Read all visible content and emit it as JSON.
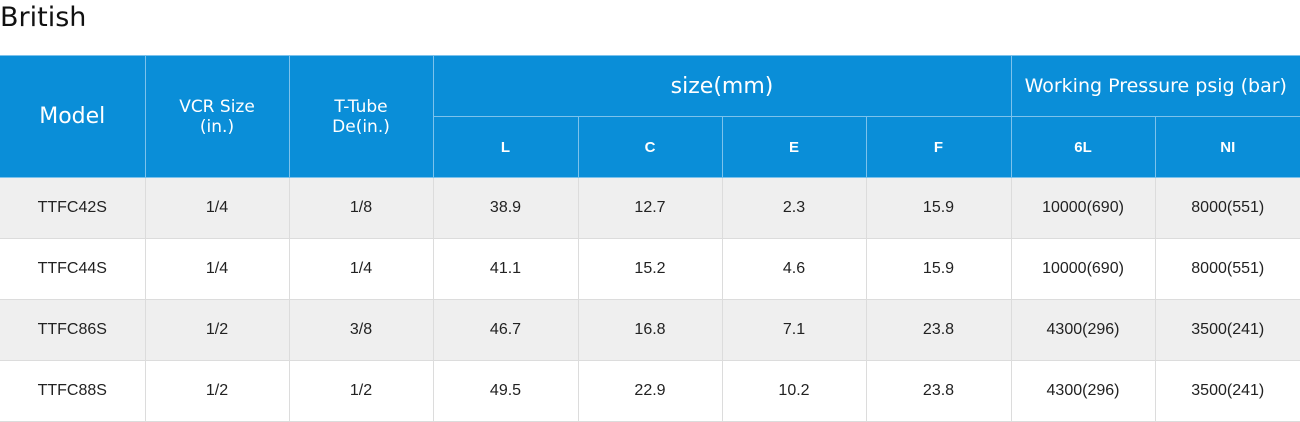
{
  "title": "British",
  "table": {
    "header": {
      "model": "Model",
      "vcr_size": [
        "VCR Size",
        "(in.)"
      ],
      "t_tube": [
        "T-Tube",
        "De(in.)"
      ],
      "size_group": "size(mm)",
      "pressure_group": "Working Pressure psig (bar)",
      "size_columns": [
        "L",
        "C",
        "E",
        "F"
      ],
      "pressure_columns": [
        "6L",
        "NI"
      ]
    },
    "rows": [
      [
        "TTFC42S",
        "1/4",
        "1/8",
        "38.9",
        "12.7",
        "2.3",
        "15.9",
        "10000(690)",
        "8000(551)"
      ],
      [
        "TTFC44S",
        "1/4",
        "1/4",
        "41.1",
        "15.2",
        "4.6",
        "15.9",
        "10000(690)",
        "8000(551)"
      ],
      [
        "TTFC86S",
        "1/2",
        "3/8",
        "46.7",
        "16.8",
        "7.1",
        "23.8",
        "4300(296)",
        "3500(241)"
      ],
      [
        "TTFC88S",
        "1/2",
        "1/2",
        "49.5",
        "22.9",
        "10.2",
        "23.8",
        "4300(296)",
        "3500(241)"
      ]
    ]
  }
}
